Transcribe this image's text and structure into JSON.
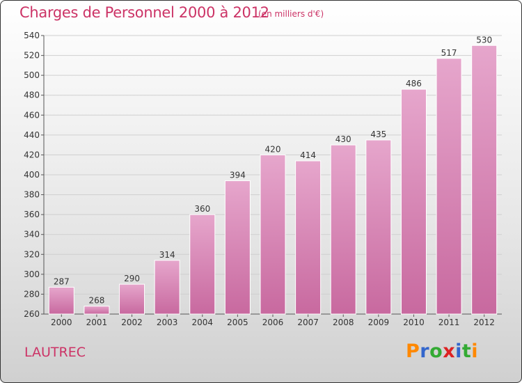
{
  "header": {
    "title": "Charges de Personnel 2000 à 2012",
    "unit": "(en milliers d'€)"
  },
  "footer": {
    "town": "LAUTREC",
    "logo_letters": [
      "P",
      "r",
      "o",
      "x",
      "i",
      "t",
      "i"
    ],
    "logo_colors": [
      "#ff8800",
      "#3366cc",
      "#33aa33",
      "#dd2222",
      "#3366cc",
      "#33aa33",
      "#ff8800"
    ]
  },
  "chart_data": {
    "type": "bar",
    "categories": [
      "2000",
      "2001",
      "2002",
      "2003",
      "2004",
      "2005",
      "2006",
      "2007",
      "2008",
      "2009",
      "2010",
      "2011",
      "2012"
    ],
    "values": [
      287,
      268,
      290,
      314,
      360,
      394,
      420,
      414,
      430,
      435,
      486,
      517,
      530
    ],
    "data_labels": [
      "287",
      "268",
      "290",
      "314",
      "360",
      "394",
      "420",
      "414",
      "430",
      "435",
      "486",
      "517",
      "530"
    ],
    "title": "Charges de Personnel 2000 à 2012",
    "ylim": [
      260,
      540
    ],
    "yticks": [
      "260",
      "280",
      "300",
      "320",
      "340",
      "360",
      "380",
      "400",
      "420",
      "440",
      "460",
      "480",
      "500",
      "520",
      "540"
    ],
    "ytick_values": [
      260,
      280,
      300,
      320,
      340,
      360,
      380,
      400,
      420,
      440,
      460,
      480,
      500,
      520,
      540
    ],
    "grid": true,
    "bar_color": "#c8699f",
    "bar_color_light": "#e6a6cc"
  }
}
